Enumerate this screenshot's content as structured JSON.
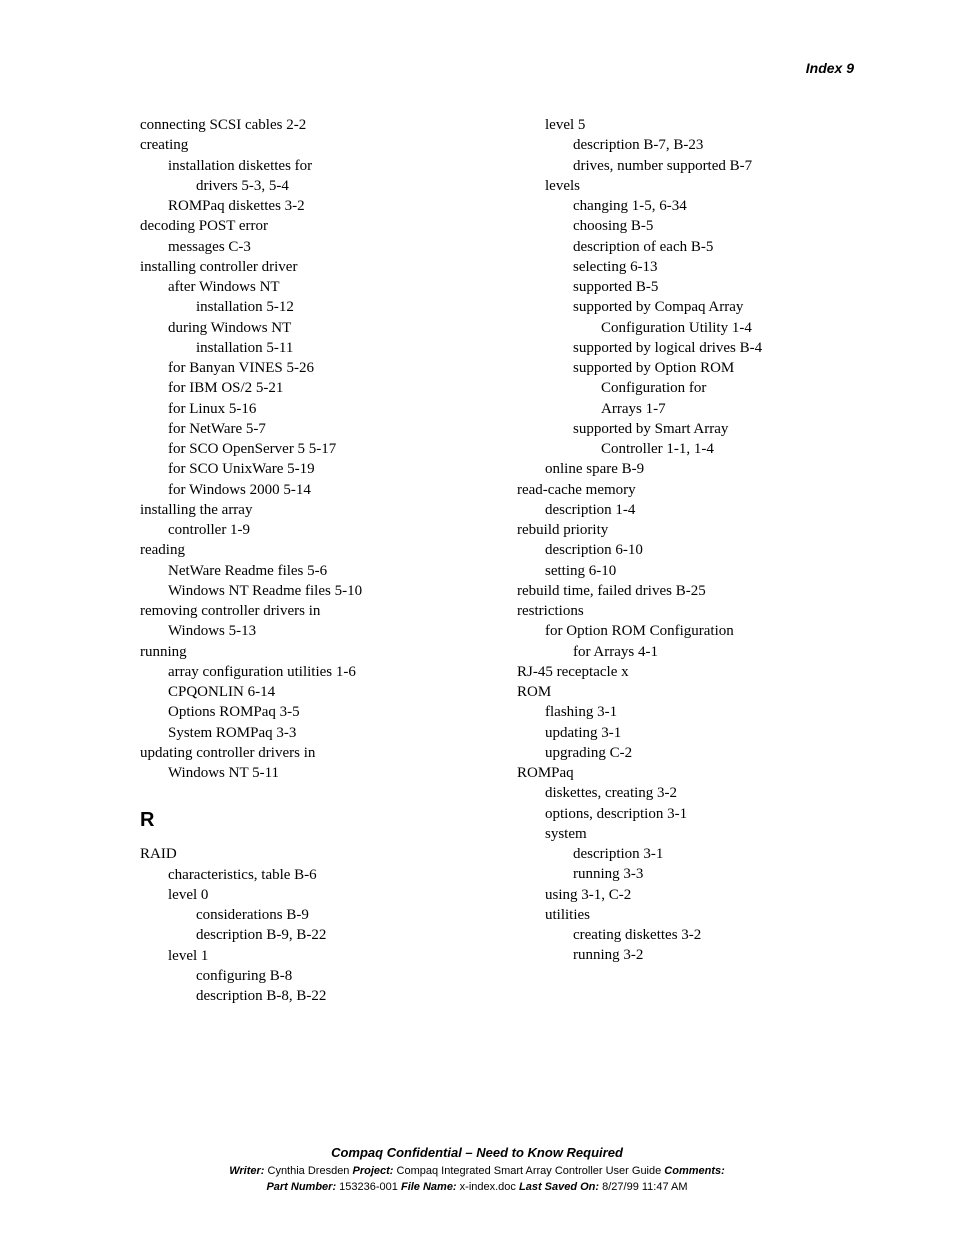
{
  "header": {
    "text": "Index   9"
  },
  "left_col": [
    {
      "indent": 0,
      "text": "connecting SCSI cables   2-2"
    },
    {
      "indent": 0,
      "text": "creating"
    },
    {
      "indent": 1,
      "text": "installation diskettes for"
    },
    {
      "indent": 2,
      "text": "drivers   5-3, 5-4"
    },
    {
      "indent": 1,
      "text": "ROMPaq diskettes   3-2"
    },
    {
      "indent": 0,
      "text": "decoding POST error"
    },
    {
      "indent": 1,
      "text": "messages   C-3"
    },
    {
      "indent": 0,
      "text": "installing controller driver"
    },
    {
      "indent": 1,
      "text": "after Windows NT"
    },
    {
      "indent": 2,
      "text": "installation   5-12"
    },
    {
      "indent": 1,
      "text": "during Windows NT"
    },
    {
      "indent": 2,
      "text": "installation   5-11"
    },
    {
      "indent": 1,
      "text": "for Banyan VINES   5-26"
    },
    {
      "indent": 1,
      "text": "for IBM OS/2   5-21"
    },
    {
      "indent": 1,
      "text": "for Linux   5-16"
    },
    {
      "indent": 1,
      "text": "for NetWare   5-7"
    },
    {
      "indent": 1,
      "text": "for SCO OpenServer 5   5-17"
    },
    {
      "indent": 1,
      "text": "for SCO UnixWare   5-19"
    },
    {
      "indent": 1,
      "text": "for Windows 2000   5-14"
    },
    {
      "indent": 0,
      "text": "installing the array"
    },
    {
      "indent": 1,
      "text": "controller   1-9"
    },
    {
      "indent": 0,
      "text": "reading"
    },
    {
      "indent": 1,
      "text": "NetWare Readme files   5-6"
    },
    {
      "indent": 1,
      "text": "Windows NT Readme files   5-10"
    },
    {
      "indent": 0,
      "text": "removing controller drivers in"
    },
    {
      "indent": 1,
      "text": "Windows   5-13"
    },
    {
      "indent": 0,
      "text": "running"
    },
    {
      "indent": 1,
      "text": "array configuration utilities   1-6"
    },
    {
      "indent": 1,
      "text": "CPQONLIN   6-14"
    },
    {
      "indent": 1,
      "text": "Options ROMPaq   3-5"
    },
    {
      "indent": 1,
      "text": "System ROMPaq   3-3"
    },
    {
      "indent": 0,
      "text": "updating controller drivers in"
    },
    {
      "indent": 1,
      "text": "Windows NT   5-11"
    }
  ],
  "section_r_letter": "R",
  "section_r": [
    {
      "indent": 0,
      "text": "RAID"
    },
    {
      "indent": 1,
      "text": "characteristics, table   B-6"
    },
    {
      "indent": 1,
      "text": "level 0"
    },
    {
      "indent": 2,
      "text": "considerations   B-9"
    },
    {
      "indent": 2,
      "text": "description   B-9, B-22"
    },
    {
      "indent": 1,
      "text": "level 1"
    },
    {
      "indent": 2,
      "text": "configuring   B-8"
    },
    {
      "indent": 2,
      "text": "description   B-8, B-22"
    }
  ],
  "right_col": [
    {
      "indent": 1,
      "text": "level 5"
    },
    {
      "indent": 2,
      "text": "description   B-7, B-23"
    },
    {
      "indent": 2,
      "text": "drives, number supported   B-7"
    },
    {
      "indent": 1,
      "text": "levels"
    },
    {
      "indent": 2,
      "text": "changing   1-5, 6-34"
    },
    {
      "indent": 2,
      "text": "choosing   B-5"
    },
    {
      "indent": 2,
      "text": "description of each   B-5"
    },
    {
      "indent": 2,
      "text": "selecting   6-13"
    },
    {
      "indent": 2,
      "text": "supported   B-5"
    },
    {
      "indent": 2,
      "text": "supported by Compaq Array"
    },
    {
      "indent": 3,
      "text": "Configuration Utility   1-4"
    },
    {
      "indent": 2,
      "text": "supported by logical drives   B-4"
    },
    {
      "indent": 2,
      "text": "supported by Option ROM"
    },
    {
      "indent": 3,
      "text": "Configuration for"
    },
    {
      "indent": 3,
      "text": "Arrays   1-7"
    },
    {
      "indent": 2,
      "text": "supported by Smart Array"
    },
    {
      "indent": 3,
      "text": "Controller   1-1, 1-4"
    },
    {
      "indent": 1,
      "text": "online spare   B-9"
    },
    {
      "indent": 0,
      "text": "read-cache memory"
    },
    {
      "indent": 1,
      "text": "description   1-4"
    },
    {
      "indent": 0,
      "text": "rebuild priority"
    },
    {
      "indent": 1,
      "text": "description   6-10"
    },
    {
      "indent": 1,
      "text": "setting   6-10"
    },
    {
      "indent": 0,
      "text": "rebuild time, failed drives   B-25"
    },
    {
      "indent": 0,
      "text": "restrictions"
    },
    {
      "indent": 1,
      "text": "for Option ROM Configuration"
    },
    {
      "indent": 2,
      "text": "for Arrays   4-1"
    },
    {
      "indent": 0,
      "text": "RJ-45 receptacle   x"
    },
    {
      "indent": 0,
      "text": "ROM"
    },
    {
      "indent": 1,
      "text": "flashing   3-1"
    },
    {
      "indent": 1,
      "text": "updating   3-1"
    },
    {
      "indent": 1,
      "text": "upgrading   C-2"
    },
    {
      "indent": 0,
      "text": "ROMPaq"
    },
    {
      "indent": 1,
      "text": "diskettes, creating   3-2"
    },
    {
      "indent": 1,
      "text": "options, description   3-1"
    },
    {
      "indent": 1,
      "text": "system"
    },
    {
      "indent": 2,
      "text": "description   3-1"
    },
    {
      "indent": 2,
      "text": "running   3-3"
    },
    {
      "indent": 1,
      "text": "using   3-1, C-2"
    },
    {
      "indent": 1,
      "text": "utilities"
    },
    {
      "indent": 2,
      "text": "creating diskettes   3-2"
    },
    {
      "indent": 2,
      "text": "running   3-2"
    }
  ],
  "footer": {
    "title": "Compaq Confidential – Need to Know Required",
    "writer_lbl": "Writer:",
    "writer_val": " Cynthia Dresden  ",
    "project_lbl": "Project:",
    "project_val": " Compaq Integrated Smart Array Controller User Guide  ",
    "comments_lbl": "Comments:",
    "part_lbl": "Part Number:",
    "part_val": " 153236-001  ",
    "file_lbl": "File Name:",
    "file_val": " x-index.doc  ",
    "saved_lbl": "Last Saved On:",
    "saved_val": " 8/27/99 11:47 AM"
  }
}
